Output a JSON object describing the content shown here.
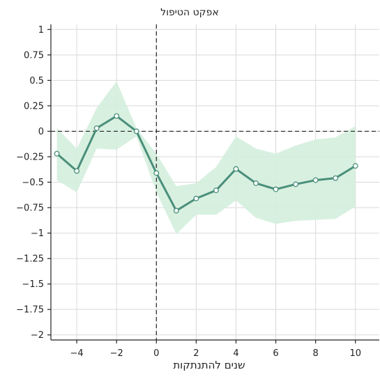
{
  "chart_data": {
    "type": "line",
    "title": "אפקט הטיפול",
    "xlabel": "שנים להתנתקות",
    "ylabel": "",
    "xlim": [
      -5.3,
      11.2
    ],
    "ylim": [
      -2.05,
      1.05
    ],
    "x_ticks": [
      -4,
      -2,
      0,
      2,
      4,
      6,
      8,
      10
    ],
    "x_tick_labels": [
      "−4",
      "−2",
      "0",
      "2",
      "4",
      "6",
      "8",
      "10"
    ],
    "y_ticks": [
      1,
      0.75,
      0.5,
      0.25,
      0,
      -0.25,
      -0.5,
      -0.75,
      -1,
      -1.25,
      -1.5,
      -1.75,
      -2
    ],
    "y_tick_labels": [
      "1",
      "0.75",
      "0.5",
      "0.25",
      "0",
      "−0.25",
      "−0.5",
      "−0.75",
      "−1",
      "−1.25",
      "−1.5",
      "−1.75",
      "−2"
    ],
    "grid": true,
    "reference_lines": {
      "x": 0,
      "y": 0
    },
    "series": [
      {
        "x": [
          -5,
          -4,
          -3,
          -2,
          -1,
          0,
          1,
          2,
          3,
          4,
          5,
          6,
          7,
          8,
          9,
          10
        ],
        "y": [
          -0.22,
          -0.39,
          0.03,
          0.15,
          0.0,
          -0.41,
          -0.78,
          -0.66,
          -0.58,
          -0.37,
          -0.51,
          -0.57,
          -0.52,
          -0.48,
          -0.46,
          -0.34
        ],
        "ci_lower": [
          -0.48,
          -0.6,
          -0.17,
          -0.18,
          -0.05,
          -0.6,
          -1.01,
          -0.82,
          -0.82,
          -0.68,
          -0.85,
          -0.91,
          -0.88,
          -0.87,
          -0.86,
          -0.74
        ],
        "ci_upper": [
          0.03,
          -0.17,
          0.23,
          0.49,
          0.03,
          -0.22,
          -0.54,
          -0.51,
          -0.35,
          -0.05,
          -0.17,
          -0.22,
          -0.14,
          -0.08,
          -0.06,
          0.05
        ]
      }
    ],
    "colors": {
      "line": "#4a8f7b",
      "band": "#d4eedd",
      "marker_fill": "#ffffff",
      "grid": "#d9d9d9",
      "axis": "#222222",
      "reference": "#222222"
    }
  }
}
